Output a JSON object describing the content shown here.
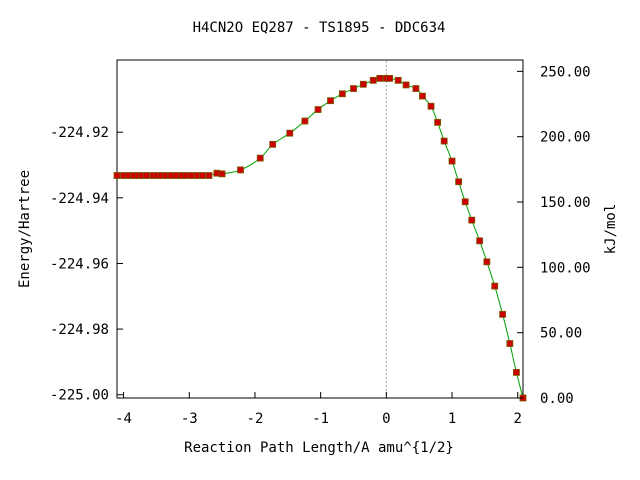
{
  "chart_data": {
    "type": "line",
    "title": "H4CN2O   EQ287 - TS1895 - DDC634",
    "xlabel": "Reaction Path Length/A amu^{1/2}",
    "ylabel": "Energy/Hartree",
    "y2label": "kJ/mol",
    "xlim": [
      -4.1,
      2.08
    ],
    "ylim": [
      -225.001,
      -224.898
    ],
    "y2lim": [
      0.0,
      258.7
    ],
    "x_ticks": [
      -4,
      -3,
      -2,
      -1,
      0,
      1,
      2
    ],
    "x_tick_labels": [
      "-4",
      "-3",
      "-2",
      "-1",
      "0",
      "1",
      "2"
    ],
    "y_ticks": [
      -224.92,
      -224.94,
      -224.96,
      -224.98,
      -225.0
    ],
    "y_tick_labels": [
      "-224.92",
      "-224.94",
      "-224.96",
      "-224.98",
      "-225.00"
    ],
    "y2_ticks": [
      250,
      200,
      150,
      100,
      50,
      0
    ],
    "y2_tick_labels": [
      "250.00",
      "200.00",
      "150.00",
      "100.00",
      "50.00",
      "0.00"
    ],
    "transition_state_x": 0.0,
    "grid": false,
    "colors": {
      "curve": "#00a000",
      "points": "#cc0000",
      "marker_edge": "#7a5a00",
      "ts_line": "#aaaaaa"
    },
    "series": [
      {
        "x": [
          -4.1,
          -4.0,
          -3.93,
          -3.85,
          -3.78,
          -3.72,
          -3.65,
          -3.55,
          -3.48,
          -3.42,
          -3.35,
          -3.28,
          -3.2,
          -3.12,
          -3.05,
          -2.97,
          -2.88,
          -2.8,
          -2.7,
          -2.58,
          -2.5,
          -2.22,
          -1.92,
          -1.73,
          -1.47,
          -1.24,
          -1.04,
          -0.85,
          -0.67,
          -0.5,
          -0.35,
          -0.2,
          -0.1,
          0.0,
          0.05,
          0.18,
          0.3,
          0.45,
          0.55,
          0.68,
          0.78,
          0.88,
          1.0,
          1.1,
          1.2,
          1.3,
          1.42,
          1.53,
          1.65,
          1.77,
          1.88,
          1.98,
          2.08
        ],
        "y": [
          -224.9332,
          -224.9332,
          -224.9332,
          -224.9332,
          -224.9332,
          -224.9332,
          -224.9332,
          -224.9332,
          -224.9332,
          -224.9332,
          -224.9332,
          -224.9332,
          -224.9332,
          -224.9332,
          -224.9332,
          -224.9332,
          -224.9332,
          -224.9332,
          -224.9332,
          -224.9325,
          -224.9327,
          -224.9315,
          -224.9279,
          -224.9237,
          -224.9203,
          -224.9166,
          -224.9131,
          -224.9104,
          -224.9083,
          -224.9067,
          -224.9054,
          -224.9042,
          -224.9036,
          -224.9036,
          -224.9036,
          -224.9042,
          -224.9056,
          -224.9067,
          -224.909,
          -224.9121,
          -224.917,
          -224.9227,
          -224.9288,
          -224.9351,
          -224.9412,
          -224.9468,
          -224.9531,
          -224.9595,
          -224.9669,
          -224.9755,
          -224.9844,
          -224.9932,
          -225.001
        ],
        "markers": true
      }
    ]
  }
}
